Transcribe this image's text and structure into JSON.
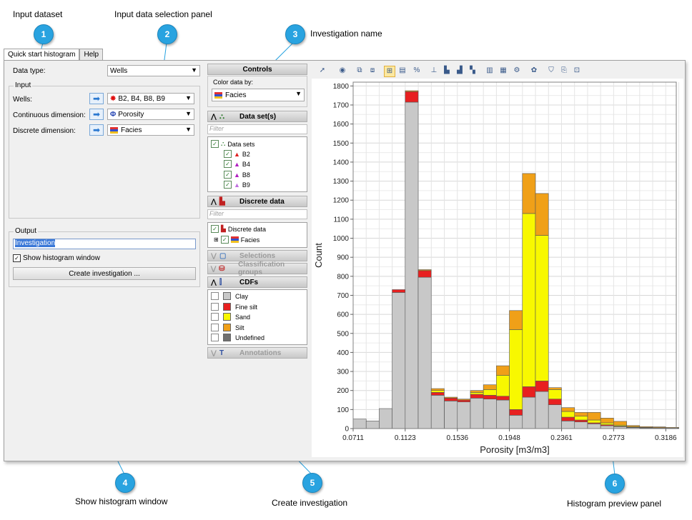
{
  "callouts": [
    {
      "num": "1",
      "title": "Input dataset"
    },
    {
      "num": "2",
      "title": "Input data selection panel"
    },
    {
      "num": "3",
      "title": "Investigation name"
    },
    {
      "num": "4",
      "title": "Show histogram window"
    },
    {
      "num": "5",
      "title": "Create investigation"
    },
    {
      "num": "6",
      "title": "Histogram preview panel"
    }
  ],
  "tabs": [
    "Quick start histogram",
    "Help"
  ],
  "form": {
    "data_type_label": "Data type:",
    "data_type_value": "Wells",
    "input_group": "Input",
    "wells_label": "Wells:",
    "wells_value": "B2, B4, B8, B9",
    "cont_label": "Continuous dimension:",
    "cont_value": "Porosity",
    "disc_label": "Discrete dimension:",
    "disc_value": "Facies",
    "output_group": "Output",
    "investigation_name": "Investigation",
    "show_histogram_label": "Show histogram window",
    "create_button": "Create investigation ..."
  },
  "controls": {
    "title": "Controls",
    "color_by_label": "Color data by:",
    "color_by_value": "Facies",
    "datasets_header": "Data set(s)",
    "filter_placeholder": "Filter",
    "datasets_root": "Data sets",
    "datasets": [
      "B2",
      "B4",
      "B8",
      "B9"
    ],
    "discrete_header": "Discrete data",
    "discrete_root": "Discrete data",
    "discrete_child": "Facies",
    "selections_header": "Selections",
    "classification_header": "Classification groups",
    "cdfs_header": "CDFs",
    "cdfs": [
      {
        "label": "Clay",
        "color": "#c8c8c8"
      },
      {
        "label": "Fine silt",
        "color": "#e82020"
      },
      {
        "label": "Sand",
        "color": "#f8f800"
      },
      {
        "label": "Silt",
        "color": "#f0a018"
      },
      {
        "label": "Undefined",
        "color": "#707070"
      }
    ],
    "annotations_header": "Annotations"
  },
  "chart_data": {
    "type": "bar",
    "stacked": true,
    "xlabel": "Porosity [m3/m3]",
    "ylabel": "Count",
    "xlim": [
      0.0711,
      0.3269
    ],
    "ylim": [
      0,
      1820
    ],
    "xticks": [
      "0.0711",
      "0.1123",
      "0.1536",
      "0.1948",
      "0.2361",
      "0.2773",
      "0.3186"
    ],
    "yticks": [
      "0",
      "100",
      "200",
      "300",
      "400",
      "500",
      "600",
      "700",
      "800",
      "900",
      "1000",
      "1100",
      "1200",
      "1300",
      "1400",
      "1500",
      "1600",
      "1700",
      "1800"
    ],
    "bin_width": 0.01031,
    "bin_starts": [
      0.0711,
      0.0814,
      0.0917,
      0.102,
      0.1123,
      0.1226,
      0.1329,
      0.1433,
      0.1536,
      0.1639,
      0.1742,
      0.1845,
      0.1948,
      0.2051,
      0.2154,
      0.2257,
      0.2361,
      0.2464,
      0.2567,
      0.267,
      0.2773,
      0.2876,
      0.2979,
      0.3082,
      0.3186
    ],
    "series": [
      {
        "name": "Clay",
        "color": "#c8c8c8",
        "values": [
          50,
          40,
          105,
          715,
          1715,
          795,
          175,
          145,
          140,
          160,
          155,
          150,
          70,
          165,
          195,
          125,
          40,
          35,
          25,
          15,
          10,
          5,
          3,
          2,
          1
        ]
      },
      {
        "name": "Fine silt",
        "color": "#e82020",
        "values": [
          0,
          0,
          0,
          15,
          55,
          35,
          15,
          15,
          10,
          20,
          20,
          20,
          30,
          55,
          55,
          30,
          20,
          10,
          5,
          5,
          3,
          2,
          1,
          1,
          1
        ]
      },
      {
        "name": "Sand",
        "color": "#f8f800",
        "values": [
          0,
          0,
          0,
          0,
          0,
          0,
          10,
          0,
          0,
          10,
          30,
          110,
          420,
          910,
          765,
          50,
          30,
          20,
          15,
          10,
          5,
          3,
          2,
          2,
          1
        ]
      },
      {
        "name": "Silt",
        "color": "#f0a018",
        "values": [
          0,
          0,
          0,
          0,
          5,
          5,
          10,
          5,
          5,
          10,
          25,
          50,
          100,
          210,
          220,
          10,
          20,
          20,
          40,
          25,
          20,
          6,
          4,
          4,
          3
        ]
      }
    ]
  }
}
